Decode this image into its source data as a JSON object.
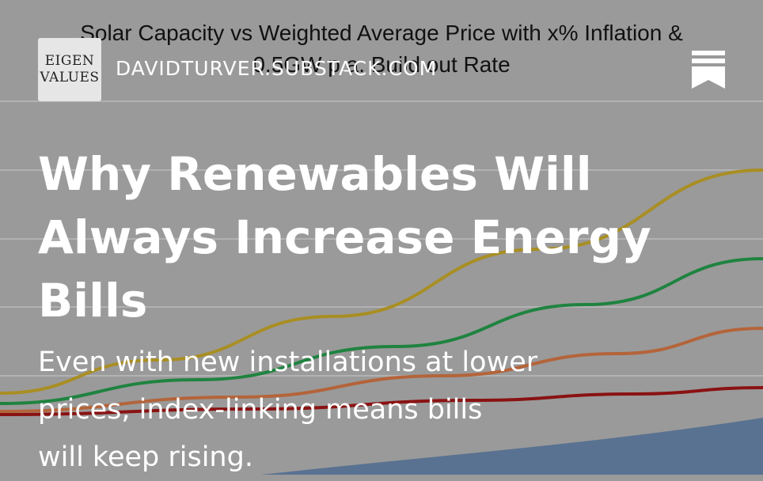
{
  "chart": {
    "title_lines": [
      "Solar Capacity vs Weighted Average Price with x% Inflation &",
      "0.5GW p.a. Build out Rate"
    ],
    "colors": {
      "background": "#9a9a9a",
      "gridline": "#b2b2b2",
      "area": "#5a7291",
      "series": [
        "#a98e23",
        "#1f8340",
        "#b4643a",
        "#8a1212"
      ]
    }
  },
  "header": {
    "logo_lines": [
      "EIGEN",
      "VALUES"
    ],
    "site_name": "DAVIDTURVER.SUBSTACK.COM",
    "bookmark_icon": "bookmark-icon"
  },
  "article": {
    "title_lines": [
      "Why Renewables Will",
      "Always Increase Energy",
      "Bills"
    ],
    "subtitle_lines": [
      "Even with new installations at lower",
      "prices, index-linking means bills",
      "will keep rising."
    ]
  }
}
